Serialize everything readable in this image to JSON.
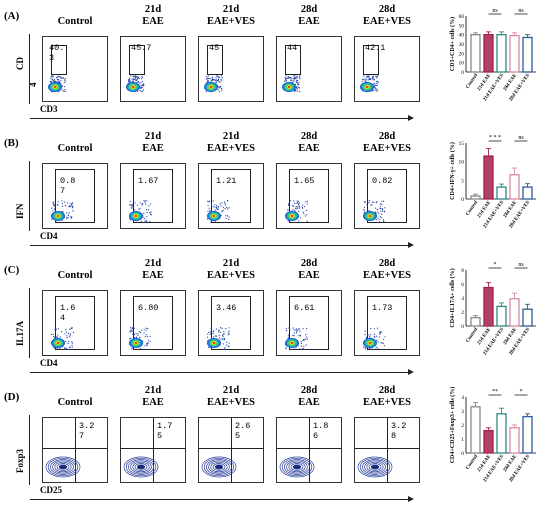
{
  "rows": [
    {
      "letter": "(A)",
      "y_axis_label": "CD",
      "y_axis_label2": "4",
      "x_axis_label": "CD3",
      "headers": [
        [
          "",
          "Control"
        ],
        [
          "21d",
          "EAE"
        ],
        [
          "21d",
          "EAE+VES"
        ],
        [
          "28d",
          "EAE"
        ],
        [
          "28d",
          "EAE+VES"
        ]
      ],
      "gate_values": [
        [
          "40.",
          "3"
        ],
        [
          "45.7",
          ""
        ],
        [
          "45",
          ""
        ],
        [
          "44",
          ""
        ],
        [
          "42.1",
          ""
        ]
      ]
    },
    {
      "letter": "(B)",
      "y_axis_label": "IFN",
      "y_axis_label2": "",
      "x_axis_label": "CD4",
      "headers": [
        [
          "",
          "Control"
        ],
        [
          "21d",
          "EAE"
        ],
        [
          "21d",
          "EAE+VES"
        ],
        [
          "28d",
          "EAE"
        ],
        [
          "28d",
          "EAE+VES"
        ]
      ],
      "gate_values": [
        [
          "0.8",
          "7"
        ],
        [
          "1.67",
          ""
        ],
        [
          "1.21",
          ""
        ],
        [
          "1.65",
          ""
        ],
        [
          "0.82",
          ""
        ]
      ]
    },
    {
      "letter": "(C)",
      "y_axis_label": "IL17A",
      "y_axis_label2": "",
      "x_axis_label": "CD4",
      "headers": [
        [
          "",
          "Control"
        ],
        [
          "21d",
          "EAE"
        ],
        [
          "21d",
          "EAE+VES"
        ],
        [
          "28d",
          "EAE"
        ],
        [
          "28d",
          "EAE+VES"
        ]
      ],
      "gate_values": [
        [
          "1.6",
          "4"
        ],
        [
          "6.80",
          ""
        ],
        [
          "3.46",
          ""
        ],
        [
          "6.61",
          ""
        ],
        [
          "1.73",
          ""
        ]
      ]
    },
    {
      "letter": "(D)",
      "y_axis_label": "Foxp3",
      "y_axis_label2": "",
      "x_axis_label": "CD25",
      "headers": [
        [
          "",
          "Control"
        ],
        [
          "21d",
          "EAE"
        ],
        [
          "21d",
          "EAE+VES"
        ],
        [
          "28d",
          "EAE"
        ],
        [
          "28d",
          "EAE+VES"
        ]
      ],
      "gate_values": [
        [
          "3.2",
          "7"
        ],
        [
          "1.7",
          "5"
        ],
        [
          "2.6",
          "5"
        ],
        [
          "1.8",
          "6"
        ],
        [
          "3.2",
          "8"
        ]
      ]
    }
  ],
  "colors": {
    "control": "#888888",
    "eae21": "#a31f4f",
    "ves21": "#2a8a88",
    "eae28": "#d88aa6",
    "ves28": "#2a5d9a"
  },
  "chart_data": [
    {
      "type": "bar",
      "ylabel": "CD3+CD4+ cells (%)",
      "categories": [
        "Control",
        "21d EAE",
        "21d EAE+VES",
        "28d EAE",
        "28d EAE+VES"
      ],
      "values": [
        40,
        40,
        40,
        39,
        37
      ],
      "errors": [
        2,
        3,
        3,
        3,
        3
      ],
      "ylim": [
        0,
        60
      ],
      "yticks": [
        "0",
        "10",
        "20",
        "30",
        "40",
        "50",
        "60"
      ],
      "significance": [
        {
          "pair": [
            1,
            2
          ],
          "label": "ns"
        },
        {
          "pair": [
            3,
            4
          ],
          "label": "ns"
        }
      ]
    },
    {
      "type": "bar",
      "ylabel": "CD4+IFN-γ+ cells (%)",
      "categories": [
        "Control",
        "21d EAE",
        "21d EAE+VES",
        "28d EAE",
        "28d EAE+VES"
      ],
      "values": [
        0.8,
        11.5,
        3.2,
        6.5,
        3.2
      ],
      "errors": [
        0.5,
        2,
        0.8,
        1.8,
        0.9
      ],
      "ylim": [
        0,
        15
      ],
      "yticks": [
        "0",
        "5",
        "10",
        "15"
      ],
      "significance": [
        {
          "pair": [
            1,
            2
          ],
          "label": "* * *"
        },
        {
          "pair": [
            3,
            4
          ],
          "label": "ns"
        }
      ]
    },
    {
      "type": "bar",
      "ylabel": "CD4+IL17A+ cells (%)",
      "categories": [
        "Control",
        "21d EAE",
        "21d EAE+VES",
        "28d EAE",
        "28d EAE+VES"
      ],
      "values": [
        1.2,
        5.5,
        2.8,
        3.9,
        2.4
      ],
      "errors": [
        0.3,
        0.7,
        0.5,
        0.8,
        0.7
      ],
      "ylim": [
        0,
        8
      ],
      "yticks": [
        "0",
        "2",
        "4",
        "6",
        "8"
      ],
      "significance": [
        {
          "pair": [
            1,
            2
          ],
          "label": "*"
        },
        {
          "pair": [
            3,
            4
          ],
          "label": "ns"
        }
      ]
    },
    {
      "type": "bar",
      "ylabel": "CD4+CD25+Foxp3+ cells (%)",
      "categories": [
        "Control",
        "21d EAE",
        "21d EAE+VES",
        "28d EAE",
        "28d EAE+VES"
      ],
      "values": [
        3.3,
        1.6,
        2.8,
        1.8,
        2.6
      ],
      "errors": [
        0.3,
        0.2,
        0.4,
        0.2,
        0.2
      ],
      "ylim": [
        0,
        4
      ],
      "yticks": [
        "0",
        "1",
        "2",
        "3",
        "4"
      ],
      "significance": [
        {
          "pair": [
            1,
            2
          ],
          "label": "**"
        },
        {
          "pair": [
            3,
            4
          ],
          "label": "*"
        }
      ]
    }
  ]
}
